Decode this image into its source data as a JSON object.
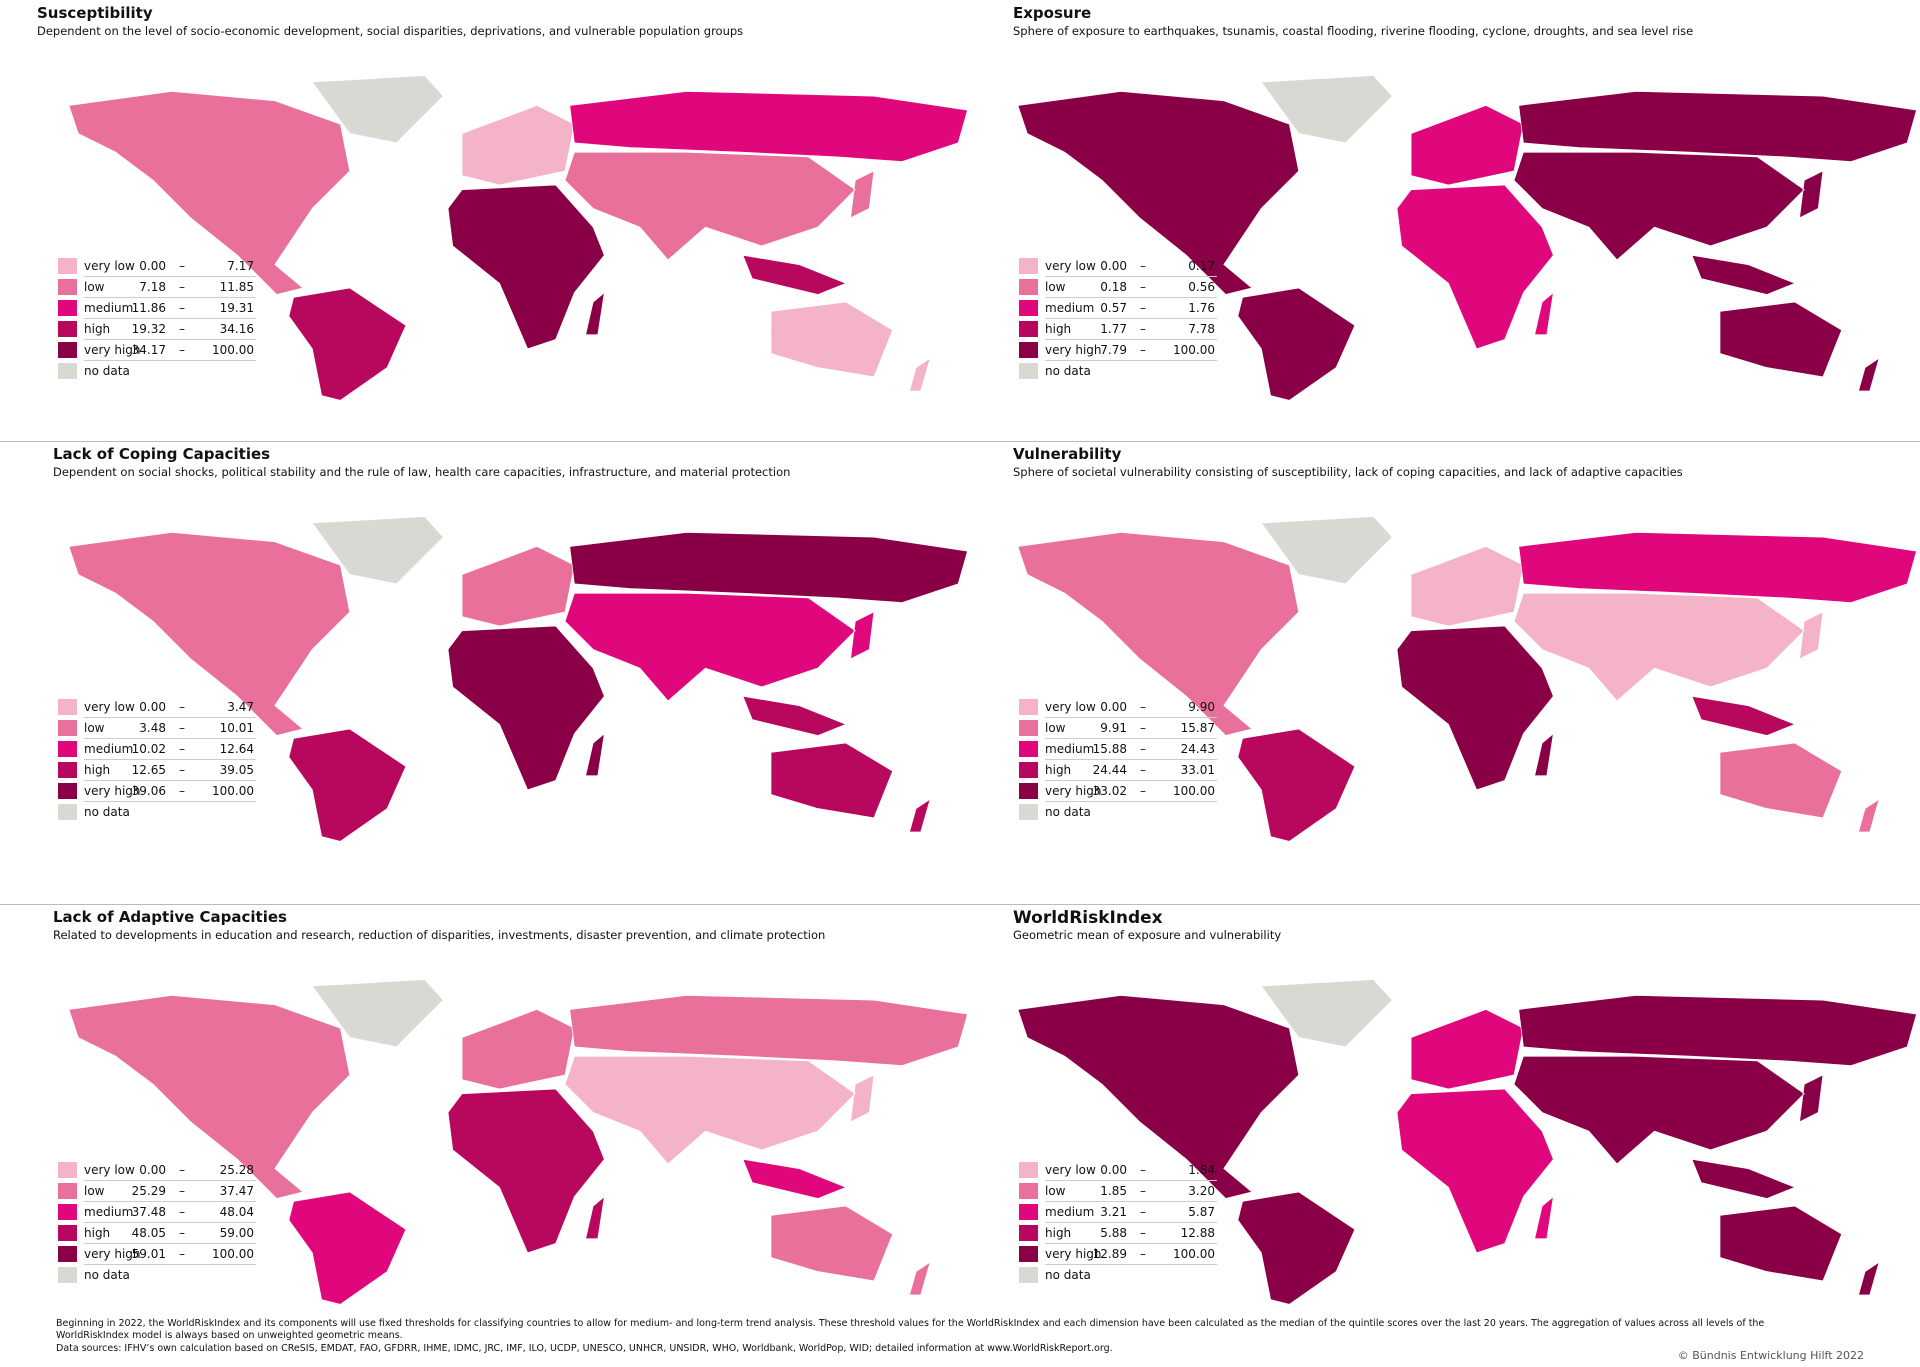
{
  "legend_separator": "–",
  "panels": [
    {
      "title": "Susceptibility",
      "subtitle": "Dependent on the level of socio-economic development, social disparities, deprivations, and vulnerable population groups",
      "legend": [
        {
          "label": "very low",
          "low": "0.00",
          "high": "7.17"
        },
        {
          "label": "low",
          "low": "7.18",
          "high": "11.85"
        },
        {
          "label": "medium",
          "low": "11.86",
          "high": "19.31"
        },
        {
          "label": "high",
          "low": "19.32",
          "high": "34.16"
        },
        {
          "label": "very high",
          "low": "34.17",
          "high": "100.00"
        }
      ],
      "no_data": "no data"
    },
    {
      "title": "Exposure",
      "subtitle": "Sphere of exposure to earthquakes, tsunamis, coastal flooding, riverine flooding, cyclone, droughts, and sea level rise",
      "legend": [
        {
          "label": "very low",
          "low": "0.00",
          "high": "0.17"
        },
        {
          "label": "low",
          "low": "0.18",
          "high": "0.56"
        },
        {
          "label": "medium",
          "low": "0.57",
          "high": "1.76"
        },
        {
          "label": "high",
          "low": "1.77",
          "high": "7.78"
        },
        {
          "label": "very high",
          "low": "7.79",
          "high": "100.00"
        }
      ],
      "no_data": "no data"
    },
    {
      "title": "Lack of Coping Capacities",
      "subtitle": "Dependent on social shocks, political stability and the rule of law, health care capacities, infrastructure, and material protection",
      "legend": [
        {
          "label": "very low",
          "low": "0.00",
          "high": "3.47"
        },
        {
          "label": "low",
          "low": "3.48",
          "high": "10.01"
        },
        {
          "label": "medium",
          "low": "10.02",
          "high": "12.64"
        },
        {
          "label": "high",
          "low": "12.65",
          "high": "39.05"
        },
        {
          "label": "very high",
          "low": "39.06",
          "high": "100.00"
        }
      ],
      "no_data": "no data"
    },
    {
      "title": "Vulnerability",
      "subtitle": "Sphere of societal vulnerability consisting of susceptibility, lack of coping capacities, and lack of adaptive capacities",
      "legend": [
        {
          "label": "very low",
          "low": "0.00",
          "high": "9.90"
        },
        {
          "label": "low",
          "low": "9.91",
          "high": "15.87"
        },
        {
          "label": "medium",
          "low": "15.88",
          "high": "24.43"
        },
        {
          "label": "high",
          "low": "24.44",
          "high": "33.01"
        },
        {
          "label": "very high",
          "low": "33.02",
          "high": "100.00"
        }
      ],
      "no_data": "no data"
    },
    {
      "title": "Lack of Adaptive Capacities",
      "subtitle": "Related to developments in education and research, reduction of disparities, investments, disaster prevention, and climate protection",
      "legend": [
        {
          "label": "very low",
          "low": "0.00",
          "high": "25.28"
        },
        {
          "label": "low",
          "low": "25.29",
          "high": "37.47"
        },
        {
          "label": "medium",
          "low": "37.48",
          "high": "48.04"
        },
        {
          "label": "high",
          "low": "48.05",
          "high": "59.00"
        },
        {
          "label": "very high",
          "low": "59.01",
          "high": "100.00"
        }
      ],
      "no_data": "no data"
    },
    {
      "title": "WorldRiskIndex",
      "subtitle": "Geometric mean of exposure and vulnerability",
      "legend": [
        {
          "label": "very low",
          "low": "0.00",
          "high": "1.84"
        },
        {
          "label": "low",
          "low": "1.85",
          "high": "3.20"
        },
        {
          "label": "medium",
          "low": "3.21",
          "high": "5.87"
        },
        {
          "label": "high",
          "low": "5.88",
          "high": "12.88"
        },
        {
          "label": "very high",
          "low": "12.89",
          "high": "100.00"
        }
      ],
      "no_data": "no data"
    }
  ],
  "footer": {
    "note": "Beginning in 2022, the WorldRiskIndex and its components will use fixed thresholds for classifying countries to allow for medium- and long-term trend analysis. These threshold values for the WorldRiskIndex and each dimension have been calculated as the median of the quintile scores over the last 20 years. The aggregation of values across all levels of the WorldRiskIndex model is always based on unweighted geometric means.",
    "sources": "Data sources: IFHV’s own calculation based on CReSIS, EMDAT, FAO, GFDRR, IHME, IDMC, JRC, IMF, ILO, UCDP, UNESCO, UNHCR, UNSIDR, WHO, Worldbank, WorldPop, WID; detailed information at www.WorldRiskReport.org.",
    "copyright": "© Bündnis Entwicklung Hilft 2022"
  }
}
